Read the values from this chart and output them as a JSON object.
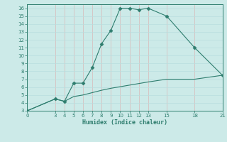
{
  "xlabel": "Humidex (Indice chaleur)",
  "bg_color": "#cceae8",
  "line_color": "#2e7d6e",
  "upper_x": [
    0,
    3,
    4,
    5,
    6,
    7,
    8,
    9,
    10,
    11,
    12,
    13,
    15,
    18,
    21
  ],
  "upper_y": [
    3,
    4.5,
    4.2,
    6.5,
    6.5,
    8.5,
    11.5,
    13.2,
    16.0,
    16.0,
    15.8,
    16.0,
    15.0,
    11.0,
    7.5
  ],
  "lower_x": [
    0,
    3,
    4,
    5,
    6,
    7,
    8,
    9,
    10,
    11,
    12,
    13,
    15,
    18,
    21
  ],
  "lower_y": [
    3,
    4.5,
    4.2,
    4.8,
    5.0,
    5.3,
    5.6,
    5.85,
    6.05,
    6.25,
    6.45,
    6.65,
    7.0,
    7.0,
    7.5
  ],
  "xlim": [
    0,
    21
  ],
  "ylim": [
    3,
    16.5
  ],
  "xticks": [
    0,
    3,
    4,
    5,
    6,
    7,
    8,
    9,
    10,
    11,
    12,
    13,
    15,
    18,
    21
  ],
  "yticks": [
    3,
    4,
    5,
    6,
    7,
    8,
    9,
    10,
    11,
    12,
    13,
    14,
    15,
    16
  ],
  "grid_color": "#b8dede",
  "grid_major_color": "#c0c0c0",
  "marker": "D",
  "marker_size": 2.5
}
